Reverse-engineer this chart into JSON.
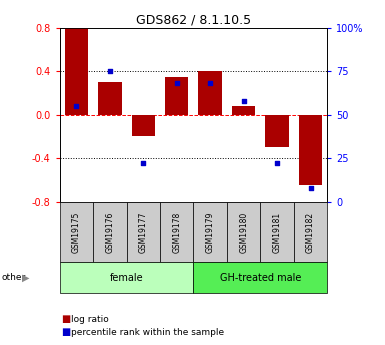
{
  "title": "GDS862 / 8.1.10.5",
  "samples": [
    "GSM19175",
    "GSM19176",
    "GSM19177",
    "GSM19178",
    "GSM19179",
    "GSM19180",
    "GSM19181",
    "GSM19182"
  ],
  "log_ratios": [
    0.8,
    0.3,
    -0.2,
    0.35,
    0.4,
    0.08,
    -0.3,
    -0.65
  ],
  "percentile_ranks": [
    55,
    75,
    22,
    68,
    68,
    58,
    22,
    8
  ],
  "groups": [
    {
      "label": "female",
      "indices": [
        0,
        1,
        2,
        3
      ],
      "color": "#bbffbb"
    },
    {
      "label": "GH-treated male",
      "indices": [
        4,
        5,
        6,
        7
      ],
      "color": "#55ee55"
    }
  ],
  "bar_color": "#aa0000",
  "dot_color": "#0000cc",
  "ylim_left": [
    -0.8,
    0.8
  ],
  "ylim_right": [
    0,
    100
  ],
  "yticks_left": [
    -0.8,
    -0.4,
    0.0,
    0.4,
    0.8
  ],
  "yticks_right": [
    0,
    25,
    50,
    75,
    100
  ],
  "ytick_labels_right": [
    "0",
    "25",
    "50",
    "75",
    "100%"
  ],
  "hlines": [
    -0.4,
    0.0,
    0.4
  ],
  "hline_styles": [
    "dotted",
    "dashed_red",
    "dotted"
  ],
  "background_color": "#ffffff",
  "legend_items": [
    {
      "label": "log ratio",
      "color": "#aa0000"
    },
    {
      "label": "percentile rank within the sample",
      "color": "#0000cc"
    }
  ],
  "other_label": "other",
  "bar_width": 0.7,
  "sample_box_color": "#cccccc",
  "title_fontsize": 9,
  "tick_fontsize": 7,
  "label_fontsize": 5.5,
  "group_fontsize": 7,
  "legend_fontsize": 6.5
}
